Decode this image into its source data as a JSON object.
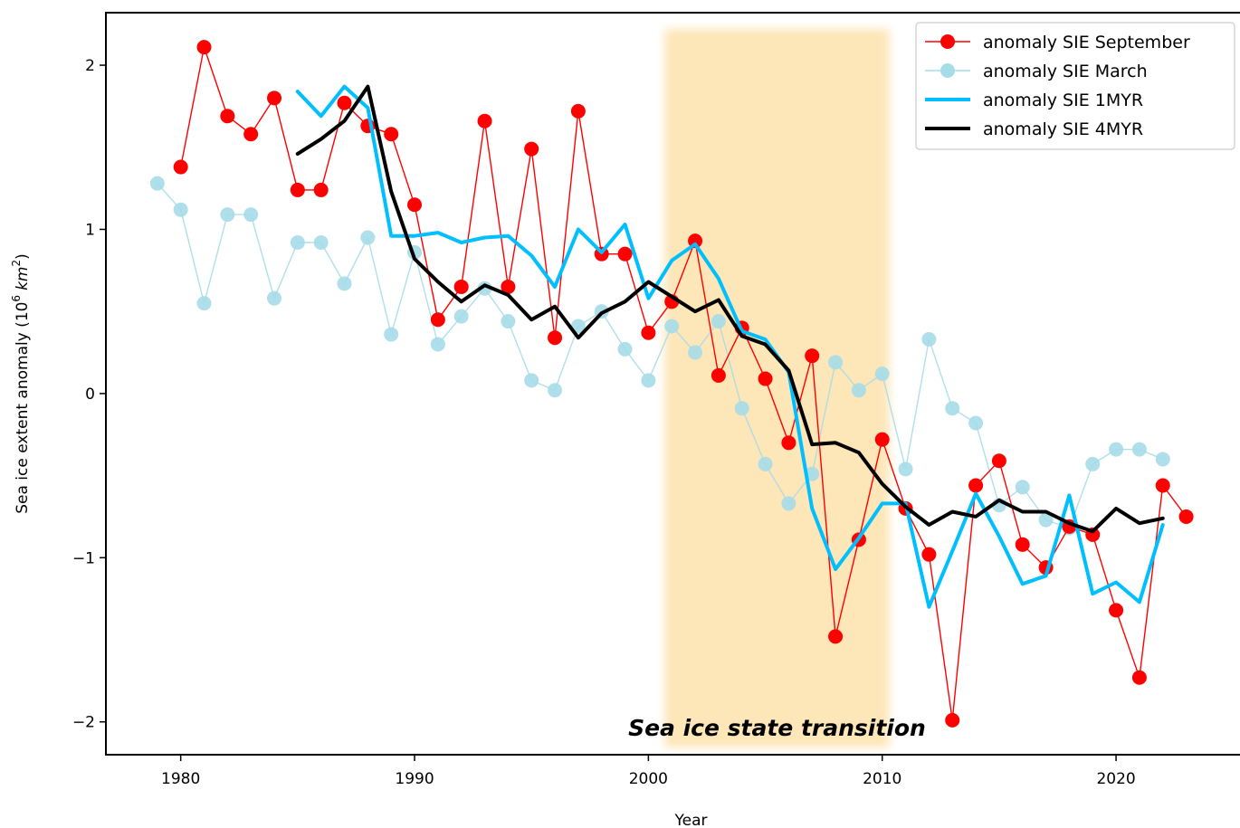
{
  "chart_data": {
    "type": "line",
    "xlabel": "Year",
    "ylabel": "Sea ice extent anomaly (10",
    "ylabel_sup": "6",
    "ylabel_unit": "km",
    "ylabel_unit_sup": "2",
    "ylabel_end": ")",
    "xlim": [
      1976.8,
      2025.3
    ],
    "ylim": [
      -2.2,
      2.32
    ],
    "xticks": [
      1980,
      1990,
      2000,
      2010,
      2020
    ],
    "xtick_labels": [
      "1980",
      "1990",
      "2000",
      "2010",
      "2020"
    ],
    "yticks": [
      2,
      1,
      0,
      -1,
      -2
    ],
    "ytick_labels": [
      "2",
      "1",
      "0",
      "−1",
      "−2"
    ],
    "highlight": {
      "x0": 2000.7,
      "x1": 2010.3,
      "color": "#fde6b8"
    },
    "annotation": {
      "text": "Sea ice state transition",
      "x": 2005.5,
      "y": -2.05
    },
    "legend": {
      "position": "upper right",
      "entries": [
        "anomaly SIE September",
        "anomaly SIE March",
        "anomaly SIE 1MYR",
        "anomaly SIE 4MYR"
      ]
    },
    "series": [
      {
        "name": "anomaly SIE March",
        "color": "#a6dbe8",
        "marker": "circle",
        "x": [
          1979,
          1980,
          1981,
          1982,
          1983,
          1984,
          1985,
          1986,
          1987,
          1988,
          1989,
          1990,
          1991,
          1992,
          1993,
          1994,
          1995,
          1996,
          1997,
          1998,
          1999,
          2000,
          2001,
          2002,
          2003,
          2004,
          2005,
          2006,
          2007,
          2008,
          2009,
          2010,
          2011,
          2012,
          2013,
          2014,
          2015,
          2016,
          2017,
          2018,
          2019,
          2020,
          2021,
          2022
        ],
        "y": [
          1.28,
          1.12,
          0.55,
          1.09,
          1.09,
          0.58,
          0.92,
          0.92,
          0.67,
          0.95,
          0.36,
          0.86,
          0.3,
          0.47,
          0.64,
          0.44,
          0.08,
          0.02,
          0.41,
          0.5,
          0.27,
          0.08,
          0.41,
          0.25,
          0.44,
          -0.09,
          -0.43,
          -0.67,
          -0.49,
          0.19,
          0.02,
          0.12,
          -0.46,
          0.33,
          -0.09,
          -0.18,
          -0.68,
          -0.57,
          -0.77,
          -0.82,
          -0.43,
          -0.34,
          -0.34,
          -0.4
        ]
      },
      {
        "name": "anomaly SIE September",
        "color": "#ff0000",
        "marker": "circle",
        "x": [
          1980,
          1981,
          1982,
          1983,
          1984,
          1985,
          1986,
          1987,
          1988,
          1989,
          1990,
          1991,
          1992,
          1993,
          1994,
          1995,
          1996,
          1997,
          1998,
          1999,
          2000,
          2001,
          2002,
          2003,
          2004,
          2005,
          2006,
          2007,
          2008,
          2009,
          2010,
          2011,
          2012,
          2013,
          2014,
          2015,
          2016,
          2017,
          2018,
          2019,
          2020,
          2021,
          2022,
          2023
        ],
        "y": [
          1.38,
          2.11,
          1.69,
          1.58,
          1.8,
          1.24,
          1.24,
          1.77,
          1.63,
          1.58,
          1.15,
          0.45,
          0.65,
          1.66,
          0.65,
          1.49,
          0.34,
          1.72,
          0.85,
          0.85,
          0.37,
          0.56,
          0.93,
          0.11,
          0.4,
          0.09,
          -0.3,
          0.23,
          -1.48,
          -0.89,
          -0.28,
          -0.7,
          -0.98,
          -1.99,
          -0.56,
          -0.41,
          -0.92,
          -1.06,
          -0.81,
          -0.86,
          -1.32,
          -1.73,
          -0.56,
          -0.75
        ]
      },
      {
        "name": "anomaly SIE 1MYR",
        "color": "#00bfff",
        "marker": "none",
        "x": [
          1985,
          1986,
          1987,
          1988,
          1989,
          1990,
          1991,
          1992,
          1993,
          1994,
          1995,
          1996,
          1997,
          1998,
          1999,
          2000,
          2001,
          2002,
          2003,
          2004,
          2005,
          2006,
          2007,
          2008,
          2009,
          2010,
          2011,
          2012,
          2013,
          2014,
          2015,
          2016,
          2017,
          2018,
          2019,
          2020,
          2021,
          2022
        ],
        "y": [
          1.84,
          1.69,
          1.87,
          1.74,
          0.96,
          0.96,
          0.98,
          0.92,
          0.95,
          0.96,
          0.84,
          0.65,
          1.0,
          0.86,
          1.03,
          0.58,
          0.81,
          0.91,
          0.7,
          0.38,
          0.33,
          0.13,
          -0.7,
          -1.07,
          -0.88,
          -0.67,
          -0.67,
          -1.3,
          -0.96,
          -0.61,
          -0.87,
          -1.16,
          -1.11,
          -0.62,
          -1.22,
          -1.15,
          -1.27,
          -0.8
        ]
      },
      {
        "name": "anomaly SIE 4MYR",
        "color": "#000000",
        "marker": "none",
        "x": [
          1985,
          1986,
          1987,
          1988,
          1989,
          1990,
          1991,
          1992,
          1993,
          1994,
          1995,
          1996,
          1997,
          1998,
          1999,
          2000,
          2001,
          2002,
          2003,
          2004,
          2005,
          2006,
          2007,
          2008,
          2009,
          2010,
          2011,
          2012,
          2013,
          2014,
          2015,
          2016,
          2017,
          2018,
          2019,
          2020,
          2021,
          2022
        ],
        "y": [
          1.46,
          1.55,
          1.66,
          1.87,
          1.23,
          0.82,
          0.68,
          0.56,
          0.66,
          0.6,
          0.45,
          0.53,
          0.34,
          0.49,
          0.56,
          0.68,
          0.59,
          0.5,
          0.57,
          0.35,
          0.3,
          0.14,
          -0.31,
          -0.3,
          -0.36,
          -0.55,
          -0.69,
          -0.8,
          -0.72,
          -0.75,
          -0.65,
          -0.72,
          -0.72,
          -0.79,
          -0.84,
          -0.7,
          -0.79,
          -0.76
        ]
      }
    ]
  }
}
